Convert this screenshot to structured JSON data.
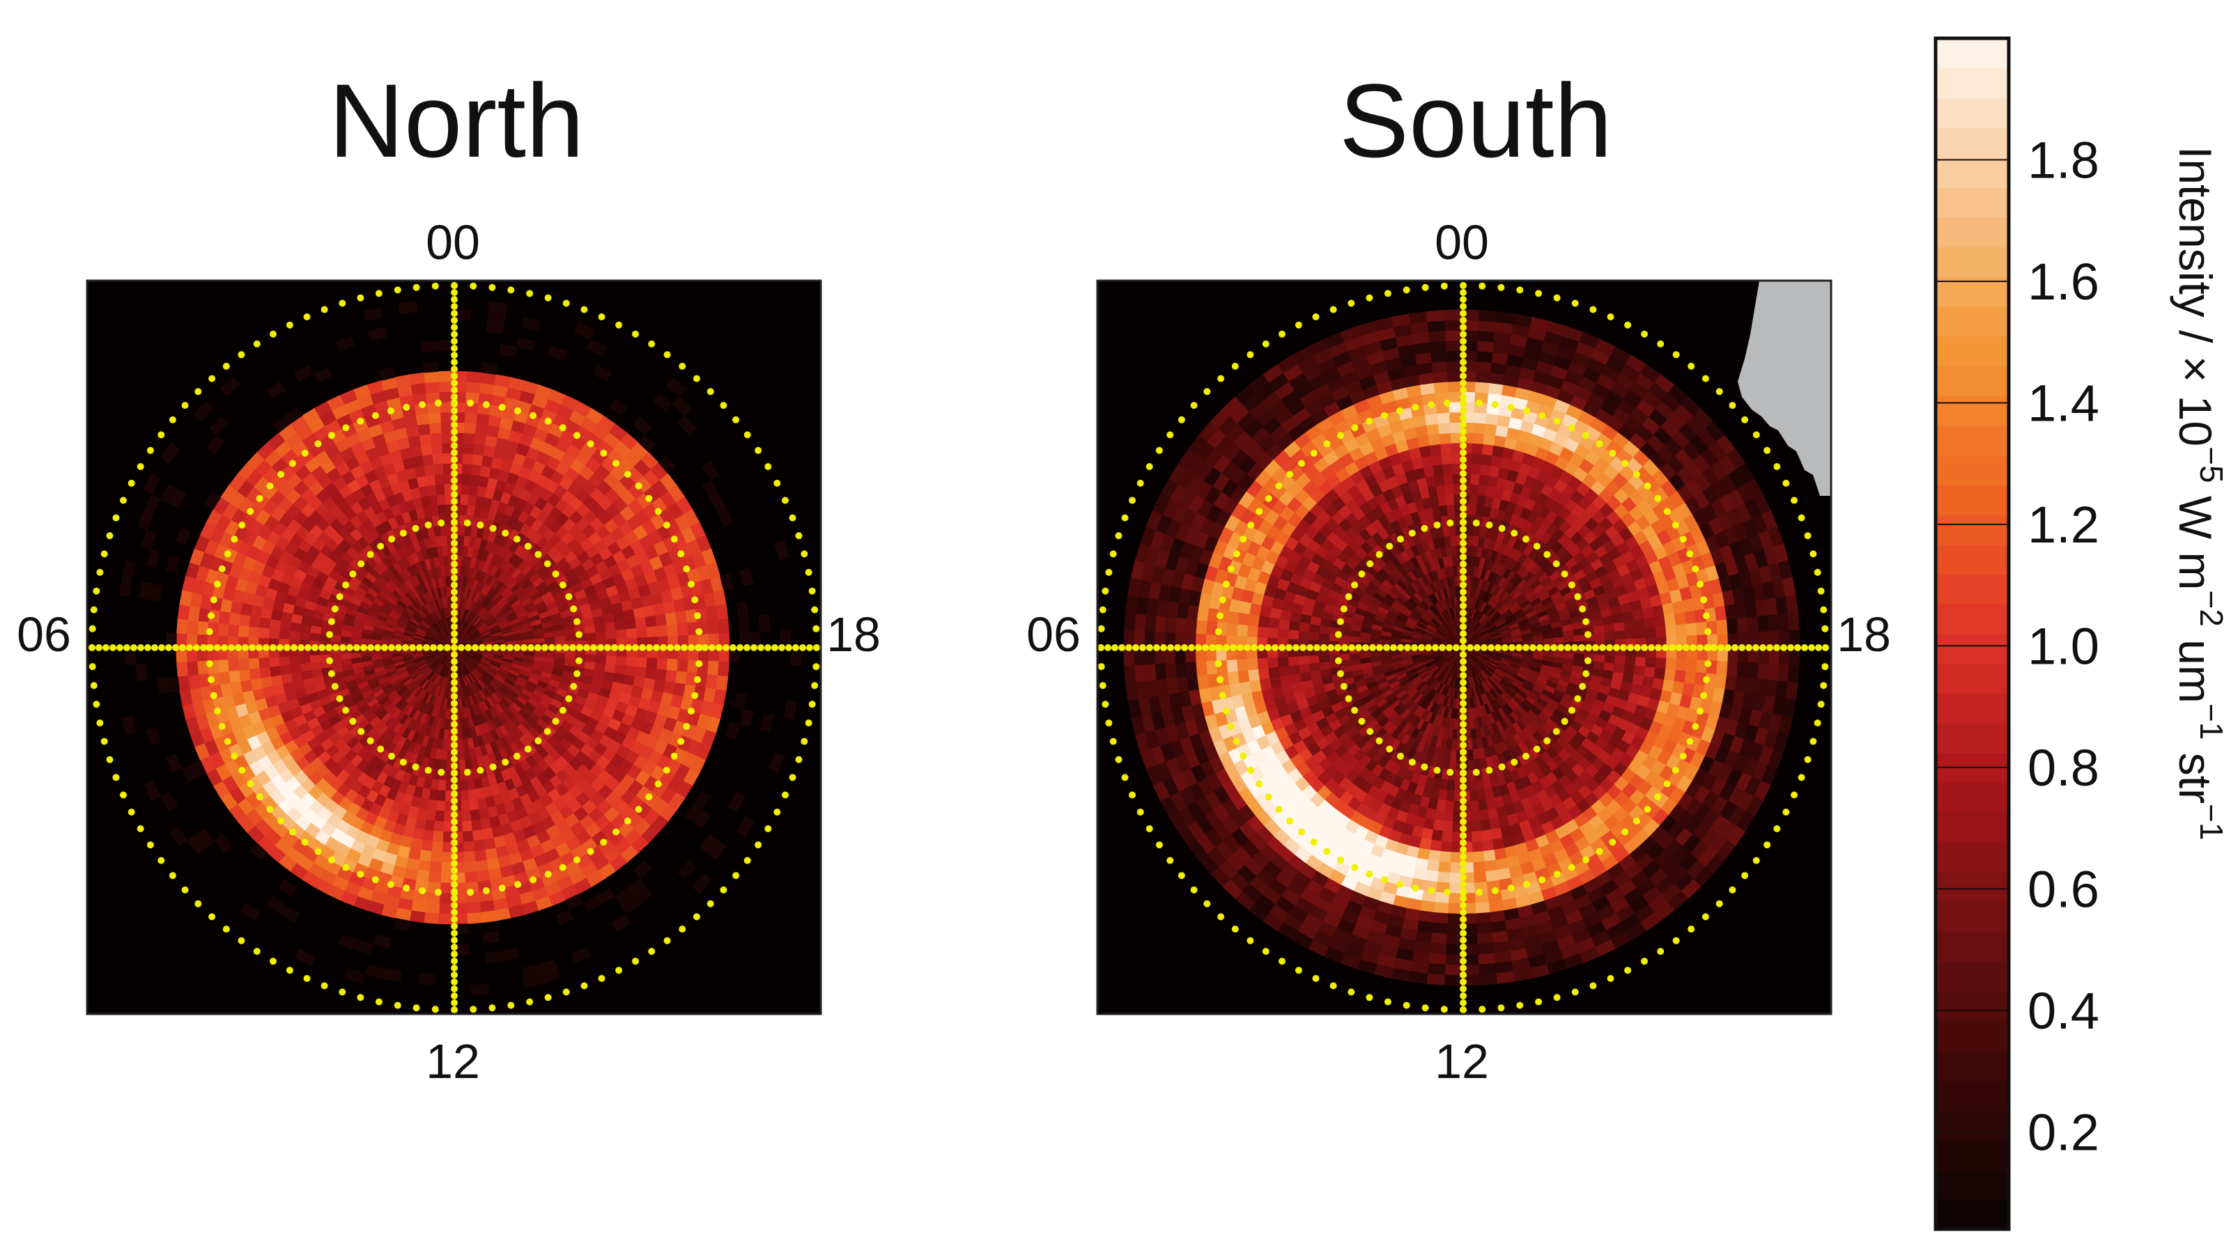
{
  "chart_data": {
    "type": "heatmap",
    "projection": "polar",
    "panels": [
      {
        "name": "North",
        "title": "North",
        "lt_labels": {
          "top": "00",
          "bottom": "12",
          "left": "06",
          "right": "18"
        },
        "auroral_oval": {
          "peak_intensity": 1.9,
          "bright_sector_lt": [
            7,
            11
          ]
        }
      },
      {
        "name": "South",
        "title": "South",
        "lt_labels": {
          "top": "00",
          "bottom": "12",
          "left": "06",
          "right": "18"
        },
        "auroral_oval": {
          "peak_intensity": 2.0,
          "bright_sector_lt": [
            6,
            12
          ]
        }
      }
    ],
    "colorbar": {
      "title_parts": [
        "Intensity / × 10",
        "−5",
        " W m",
        "−2",
        " um",
        "−1",
        " str",
        "−1"
      ],
      "ticks": [
        "1.8",
        "1.6",
        "1.4",
        "1.2",
        "1.0",
        "0.8",
        "0.6",
        "0.4",
        "0.2"
      ],
      "tick_values": [
        1.8,
        1.6,
        1.4,
        1.2,
        1.0,
        0.8,
        0.6,
        0.4,
        0.2
      ],
      "range": [
        0.04,
        2.0
      ],
      "colormap": [
        "#0a0303",
        "#3a0808",
        "#6e1010",
        "#a8161a",
        "#e03328",
        "#ef6a22",
        "#f49a3a",
        "#f8c896",
        "#fff6ee"
      ]
    },
    "overlay_color": "#f0f000",
    "no_data_color": "#b9babb"
  }
}
